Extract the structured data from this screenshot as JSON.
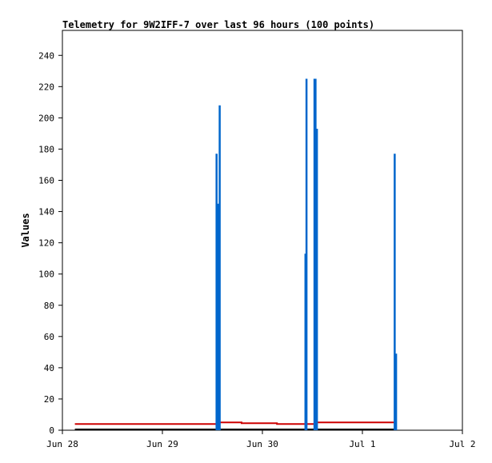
{
  "chart_data": {
    "type": "line",
    "title": "Telemetry for 9W2IFF-7 over last 96 hours (100 points)",
    "xlabel": "",
    "ylabel": "Values",
    "x_ticks": [
      "Jun 28",
      "Jun 29",
      "Jun 30",
      "Jul 1",
      "Jul 2"
    ],
    "y_ticks": [
      0,
      20,
      40,
      60,
      80,
      100,
      120,
      140,
      160,
      180,
      200,
      220,
      240
    ],
    "xlim": [
      "2021-06-28 00:00",
      "2021-07-02 00:00"
    ],
    "ylim": [
      0,
      256
    ],
    "grid": false,
    "legend": "none",
    "series": [
      {
        "color": "#cc0000",
        "points": [
          [
            "2021-06-28 03:00",
            4
          ],
          [
            "2021-06-29 13:30",
            4
          ],
          [
            "2021-06-29 13:30",
            5
          ],
          [
            "2021-06-29 19:00",
            5
          ],
          [
            "2021-06-29 19:00",
            4.5
          ],
          [
            "2021-06-30 03:30",
            4.5
          ],
          [
            "2021-06-30 03:30",
            4
          ],
          [
            "2021-06-30 12:30",
            4
          ],
          [
            "2021-06-30 12:30",
            5
          ],
          [
            "2021-07-01 08:00",
            5
          ]
        ]
      },
      {
        "color": "#000000",
        "points": [
          [
            "2021-06-28 03:00",
            0.5
          ],
          [
            "2021-07-01 08:00",
            0.5
          ]
        ]
      },
      {
        "color": "#0066cc",
        "spikes": [
          [
            "2021-06-29 13:00",
            177
          ],
          [
            "2021-06-29 13:20",
            145
          ],
          [
            "2021-06-29 13:45",
            208
          ],
          [
            "2021-06-30 10:20",
            113
          ],
          [
            "2021-06-30 10:35",
            225
          ],
          [
            "2021-06-30 12:30",
            225
          ],
          [
            "2021-06-30 12:45",
            225
          ],
          [
            "2021-06-30 13:05",
            193
          ],
          [
            "2021-07-01 07:45",
            177
          ],
          [
            "2021-07-01 08:05",
            49
          ]
        ]
      }
    ]
  }
}
